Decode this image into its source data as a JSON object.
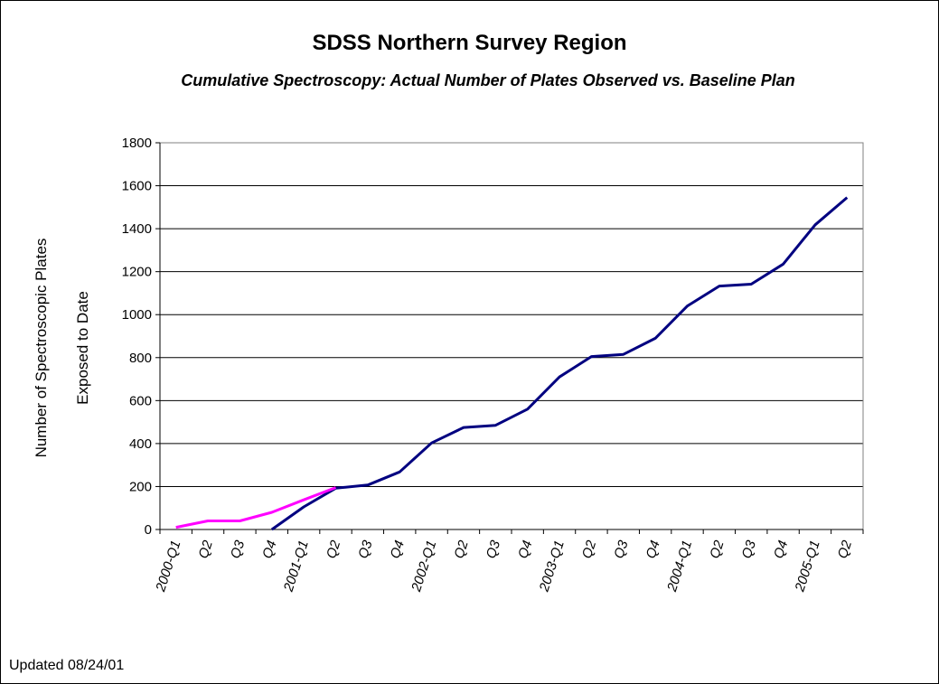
{
  "chart_data": {
    "type": "line",
    "title": "SDSS Northern Survey Region",
    "subtitle": "Cumulative Spectroscopy:  Actual Number of Plates Observed vs. Baseline Plan",
    "ylabel_lines": [
      "Number of Spectroscopic Plates",
      "Exposed to Date"
    ],
    "xlabel": "",
    "ylim": [
      0,
      1800
    ],
    "yticks": [
      0,
      200,
      400,
      600,
      800,
      1000,
      1200,
      1400,
      1600,
      1800
    ],
    "grid": true,
    "categories": [
      "2000-Q1",
      "Q2",
      "Q3",
      "Q4",
      "2001-Q1",
      "Q2",
      "Q3",
      "Q4",
      "2002-Q1",
      "Q2",
      "Q3",
      "Q4",
      "2003-Q1",
      "Q2",
      "Q3",
      "Q4",
      "2004-Q1",
      "Q2",
      "Q3",
      "Q4",
      "2005-Q1",
      "Q2"
    ],
    "series": [
      {
        "color": "#000080",
        "values": [
          null,
          null,
          null,
          0,
          105,
          192,
          207,
          268,
          403,
          475,
          485,
          560,
          710,
          805,
          815,
          890,
          1040,
          1133,
          1142,
          1235,
          1418,
          1545
        ]
      },
      {
        "color": "#ff00ff",
        "values": [
          10,
          40,
          40,
          80,
          138,
          195,
          null,
          null,
          null,
          null,
          null,
          null,
          null,
          null,
          null,
          null,
          null,
          null,
          null,
          null,
          null,
          null
        ]
      }
    ]
  },
  "footer": {
    "updated": "Updated 08/24/01"
  }
}
